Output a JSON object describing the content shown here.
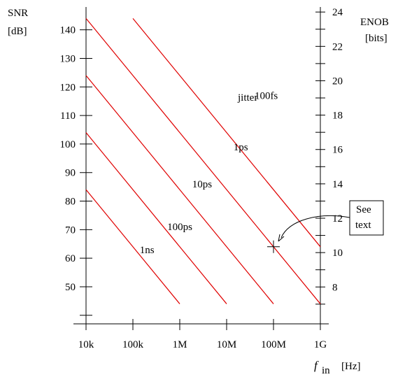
{
  "chart_data": {
    "type": "line",
    "title": "",
    "xscale": "log",
    "x_ticks": [
      {
        "value": 10000,
        "label": "10k"
      },
      {
        "value": 100000,
        "label": "100k"
      },
      {
        "value": 1000000,
        "label": "1M"
      },
      {
        "value": 10000000,
        "label": "10M"
      },
      {
        "value": 100000000,
        "label": "100M"
      },
      {
        "value": 1000000000,
        "label": "1G"
      }
    ],
    "xlim": [
      10000,
      1000000000
    ],
    "ylim": [
      37,
      148
    ],
    "y_left": {
      "label_line1": "SNR",
      "label_line2": "[dB]",
      "ticks": [
        40,
        50,
        60,
        70,
        80,
        90,
        100,
        110,
        120,
        130,
        140
      ],
      "labeled_ticks": [
        50,
        60,
        70,
        80,
        90,
        100,
        110,
        120,
        130,
        140
      ]
    },
    "y_right": {
      "label_line1": "ENOB",
      "label_line2": "[bits]",
      "ticks": [
        7,
        8,
        9,
        10,
        11,
        12,
        13,
        14,
        15,
        16,
        17,
        18,
        19,
        20,
        21,
        22,
        23,
        24
      ],
      "labeled_ticks": [
        8,
        10,
        12,
        14,
        16,
        18,
        20,
        22,
        24
      ]
    },
    "x_label": {
      "symbol": "f",
      "subscript": "in",
      "unit": "[Hz]"
    },
    "legend_title": "jitter",
    "series": [
      {
        "name": "1ns",
        "x_start": 10000,
        "y_start": 84,
        "x_end": 1000000,
        "y_end": 44
      },
      {
        "name": "100ps",
        "x_start": 10000,
        "y_start": 104,
        "x_end": 10000000,
        "y_end": 44
      },
      {
        "name": "10ps",
        "x_start": 10000,
        "y_start": 124,
        "x_end": 100000000,
        "y_end": 44
      },
      {
        "name": "1ps",
        "x_start": 10000,
        "y_start": 144,
        "x_end": 1000000000,
        "y_end": 44
      },
      {
        "name": "100fs",
        "x_start": 100000,
        "y_start": 144,
        "x_end": 1000000000,
        "y_end": 64
      }
    ],
    "series_labels": [
      {
        "name": "1ns",
        "x": 200000,
        "y": 63
      },
      {
        "name": "100ps",
        "x": 1000000,
        "y": 71
      },
      {
        "name": "10ps",
        "x": 3000000,
        "y": 86
      },
      {
        "name": "1ps",
        "x": 20000000,
        "y": 99
      },
      {
        "name": "100fs",
        "x": 70000000,
        "y": 117
      }
    ],
    "marker": {
      "x": 100000000,
      "y": 64
    },
    "annotation": {
      "line1": "See",
      "line2": "text"
    }
  }
}
